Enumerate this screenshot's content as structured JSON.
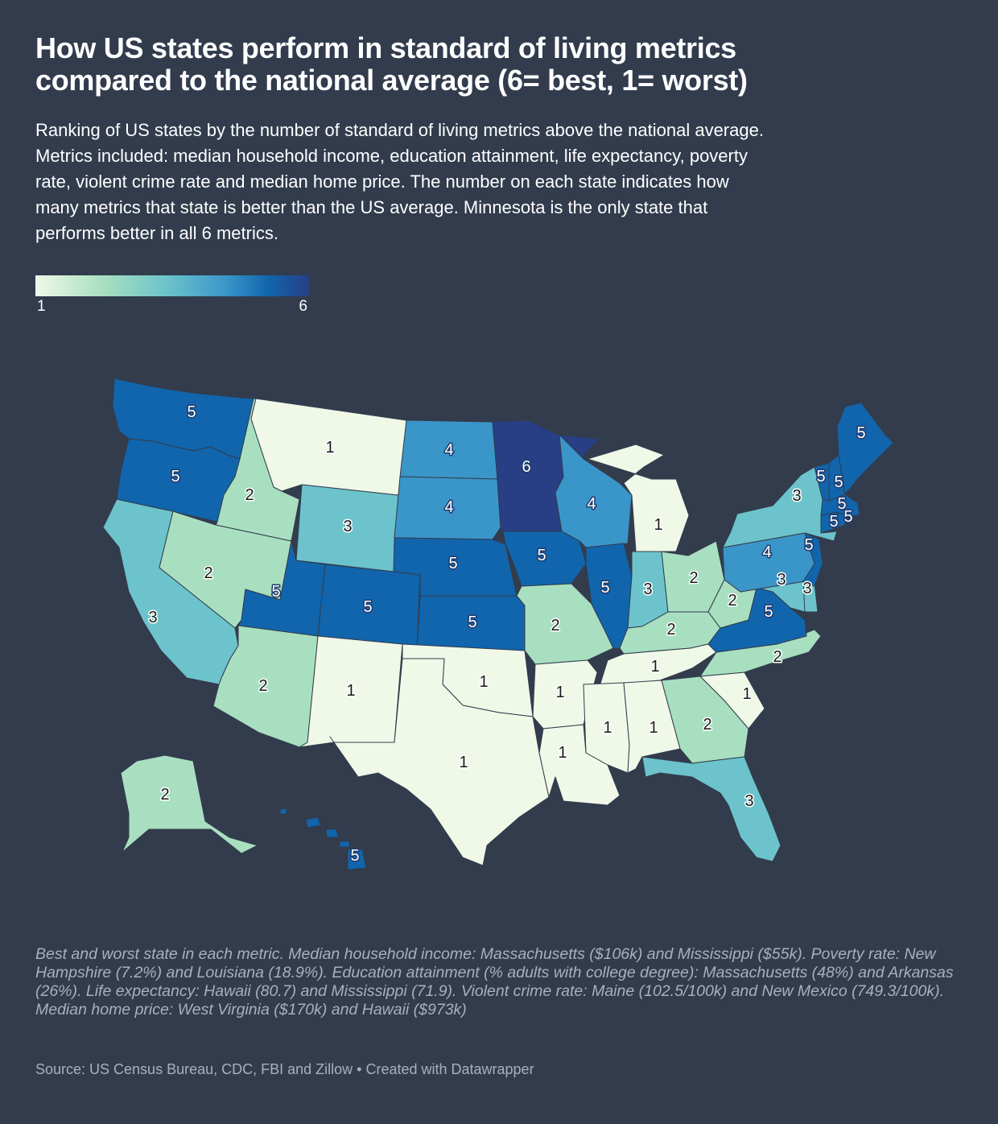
{
  "title": "How US states perform in standard of living metrics\ncompared to the national average (6= best, 1= worst)",
  "subtitle": "Ranking of US states by the number of standard of living metrics above the national average.\nMetrics included: median household income, education attainment, life expectancy, poverty\nrate, violent crime rate and median home price. The number on each state indicates how\nmany metrics that state is better than the US average. Minnesota is the only state that\nperforms better in all 6 metrics.",
  "legend": {
    "min_label": "1",
    "max_label": "6",
    "colors": [
      "#f0f8e8",
      "#a8dfc0",
      "#6cc3cb",
      "#3a95c9",
      "#1165ac",
      "#283f86"
    ]
  },
  "state_values": {
    "WA": 5,
    "OR": 5,
    "CA": 3,
    "ID": 2,
    "NV": 2,
    "MT": 1,
    "WY": 3,
    "UT": 5,
    "AZ": 2,
    "CO": 5,
    "NM": 1,
    "ND": 4,
    "SD": 4,
    "NE": 5,
    "KS": 5,
    "OK": 1,
    "TX": 1,
    "MN": 6,
    "IA": 5,
    "MO": 2,
    "AR": 1,
    "LA": 1,
    "WI": 4,
    "IL": 5,
    "MI": 1,
    "IN": 3,
    "OH": 2,
    "KY": 2,
    "TN": 1,
    "MS": 1,
    "AL": 1,
    "GA": 2,
    "FL": 3,
    "SC": 1,
    "NC": 2,
    "VA": 5,
    "WV": 2,
    "MD": 3,
    "DE": 3,
    "PA": 4,
    "NJ": 5,
    "NY": 3,
    "CT": 5,
    "RI": 5,
    "MA": 5,
    "VT": 5,
    "NH": 5,
    "ME": 5,
    "AK": 2,
    "HI": 5
  },
  "notes": "Best and worst state in each metric. Median household income: Massachusetts ($106k) and Mississippi ($55k). Poverty rate: New Hampshire (7.2%) and Louisiana (18.9%). Education attainment (% adults with college degree): Massachusetts (48%) and Arkansas (26%). Life expectancy: Hawaii (80.7) and Mississippi (71.9). Violent crime rate: Maine (102.5/100k) and New Mexico (749.3/100k). Median home price: West Virginia ($170k) and Hawaii ($973k)",
  "source": "Source: US Census Bureau, CDC, FBI and Zillow • Created with Datawrapper"
}
